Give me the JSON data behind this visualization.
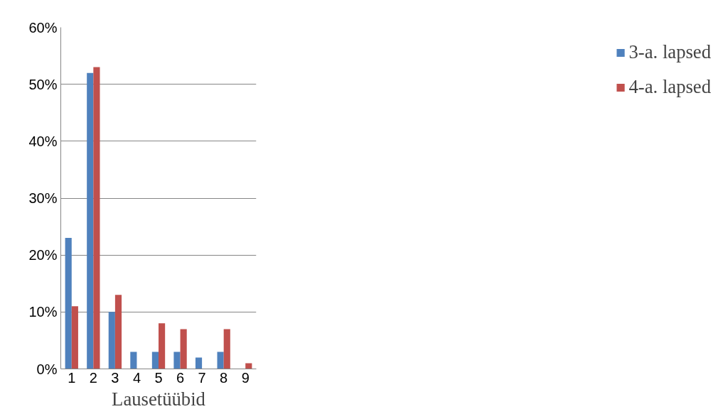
{
  "chart_data": {
    "type": "bar",
    "xlabel": "Lausetüübid",
    "categories": [
      "1",
      "2",
      "3",
      "4",
      "5",
      "6",
      "7",
      "8",
      "9"
    ],
    "series": [
      {
        "name": "3-a. lapsed",
        "color": "#4f81bd",
        "values": [
          23,
          52,
          10,
          3,
          3,
          3,
          2,
          3,
          0
        ]
      },
      {
        "name": "4-a. lapsed",
        "color": "#c0504d",
        "values": [
          11,
          53,
          13,
          0,
          8,
          7,
          0,
          7,
          1
        ]
      }
    ],
    "ylim": [
      0,
      60
    ],
    "yticks": [
      {
        "value": 0,
        "label": "0%"
      },
      {
        "value": 10,
        "label": "10%"
      },
      {
        "value": 20,
        "label": "20%"
      },
      {
        "value": 30,
        "label": "30%"
      },
      {
        "value": 40,
        "label": "40%"
      },
      {
        "value": 50,
        "label": "50%"
      },
      {
        "value": 60,
        "label": "60%"
      }
    ],
    "grid": "y",
    "legend": "right"
  }
}
